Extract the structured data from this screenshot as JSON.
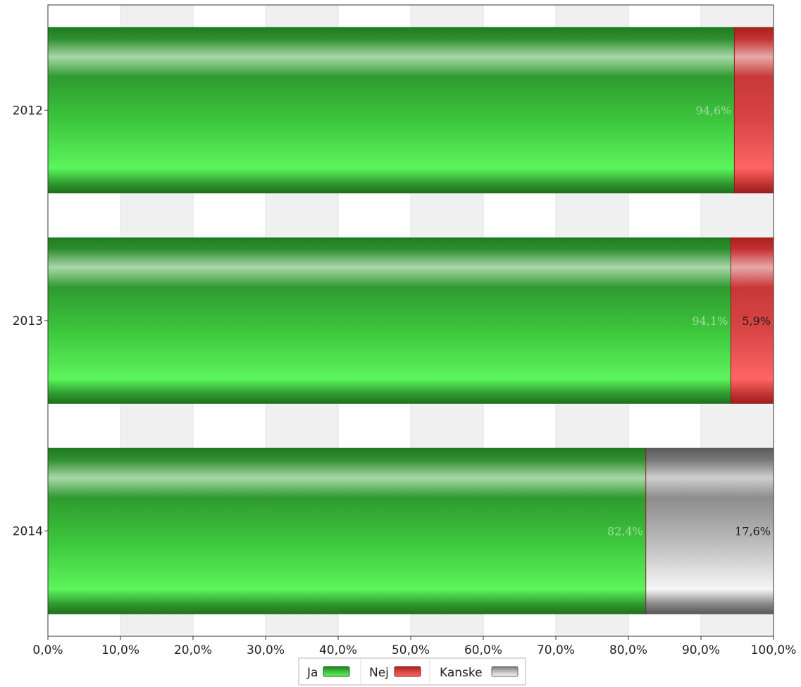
{
  "chart_data": {
    "type": "bar",
    "orientation": "horizontal",
    "stacked": true,
    "categories": [
      "2012",
      "2013",
      "2014"
    ],
    "series": [
      {
        "name": "Ja",
        "values": [
          94.6,
          94.1,
          82.4
        ],
        "labels": [
          "94,6%",
          "94,1%",
          "82,4%"
        ],
        "color": "#3fd13f"
      },
      {
        "name": "Nej",
        "values": [
          5.4,
          5.9,
          0
        ],
        "labels": [
          "",
          "5,9%",
          ""
        ],
        "color": "#e84848"
      },
      {
        "name": "Kanske",
        "values": [
          0,
          0,
          17.6
        ],
        "labels": [
          "",
          "",
          "17,6%"
        ],
        "color": "#bdbdbd"
      }
    ],
    "xlim": [
      0,
      100
    ],
    "x_ticks": [
      "0,0%",
      "10,0%",
      "20,0%",
      "30,0%",
      "40,0%",
      "50,0%",
      "60,0%",
      "70,0%",
      "80,0%",
      "90,0%",
      "100,0%"
    ],
    "grid": "alternating-bands",
    "legend_position": "bottom"
  }
}
